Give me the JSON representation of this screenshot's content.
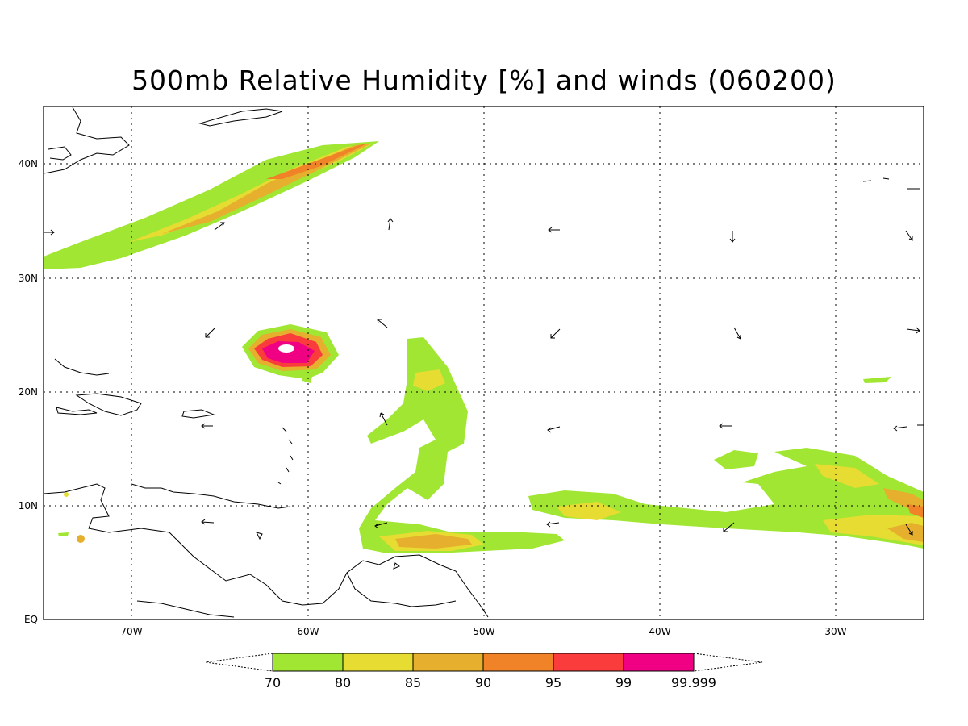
{
  "title": "500mb Relative Humidity [%] and winds (060200)",
  "lat_labels": [
    "40N",
    "30N",
    "20N",
    "10N",
    "EQ"
  ],
  "lon_labels": [
    "70W",
    "60W",
    "50W",
    "40W",
    "30W"
  ],
  "legend": {
    "colors": [
      "#a0e632",
      "#e6dc32",
      "#e6af2d",
      "#f08228",
      "#fa3c3c",
      "#f00082"
    ],
    "labels": [
      "70",
      "80",
      "85",
      "90",
      "95",
      "99",
      "99.999"
    ]
  }
}
